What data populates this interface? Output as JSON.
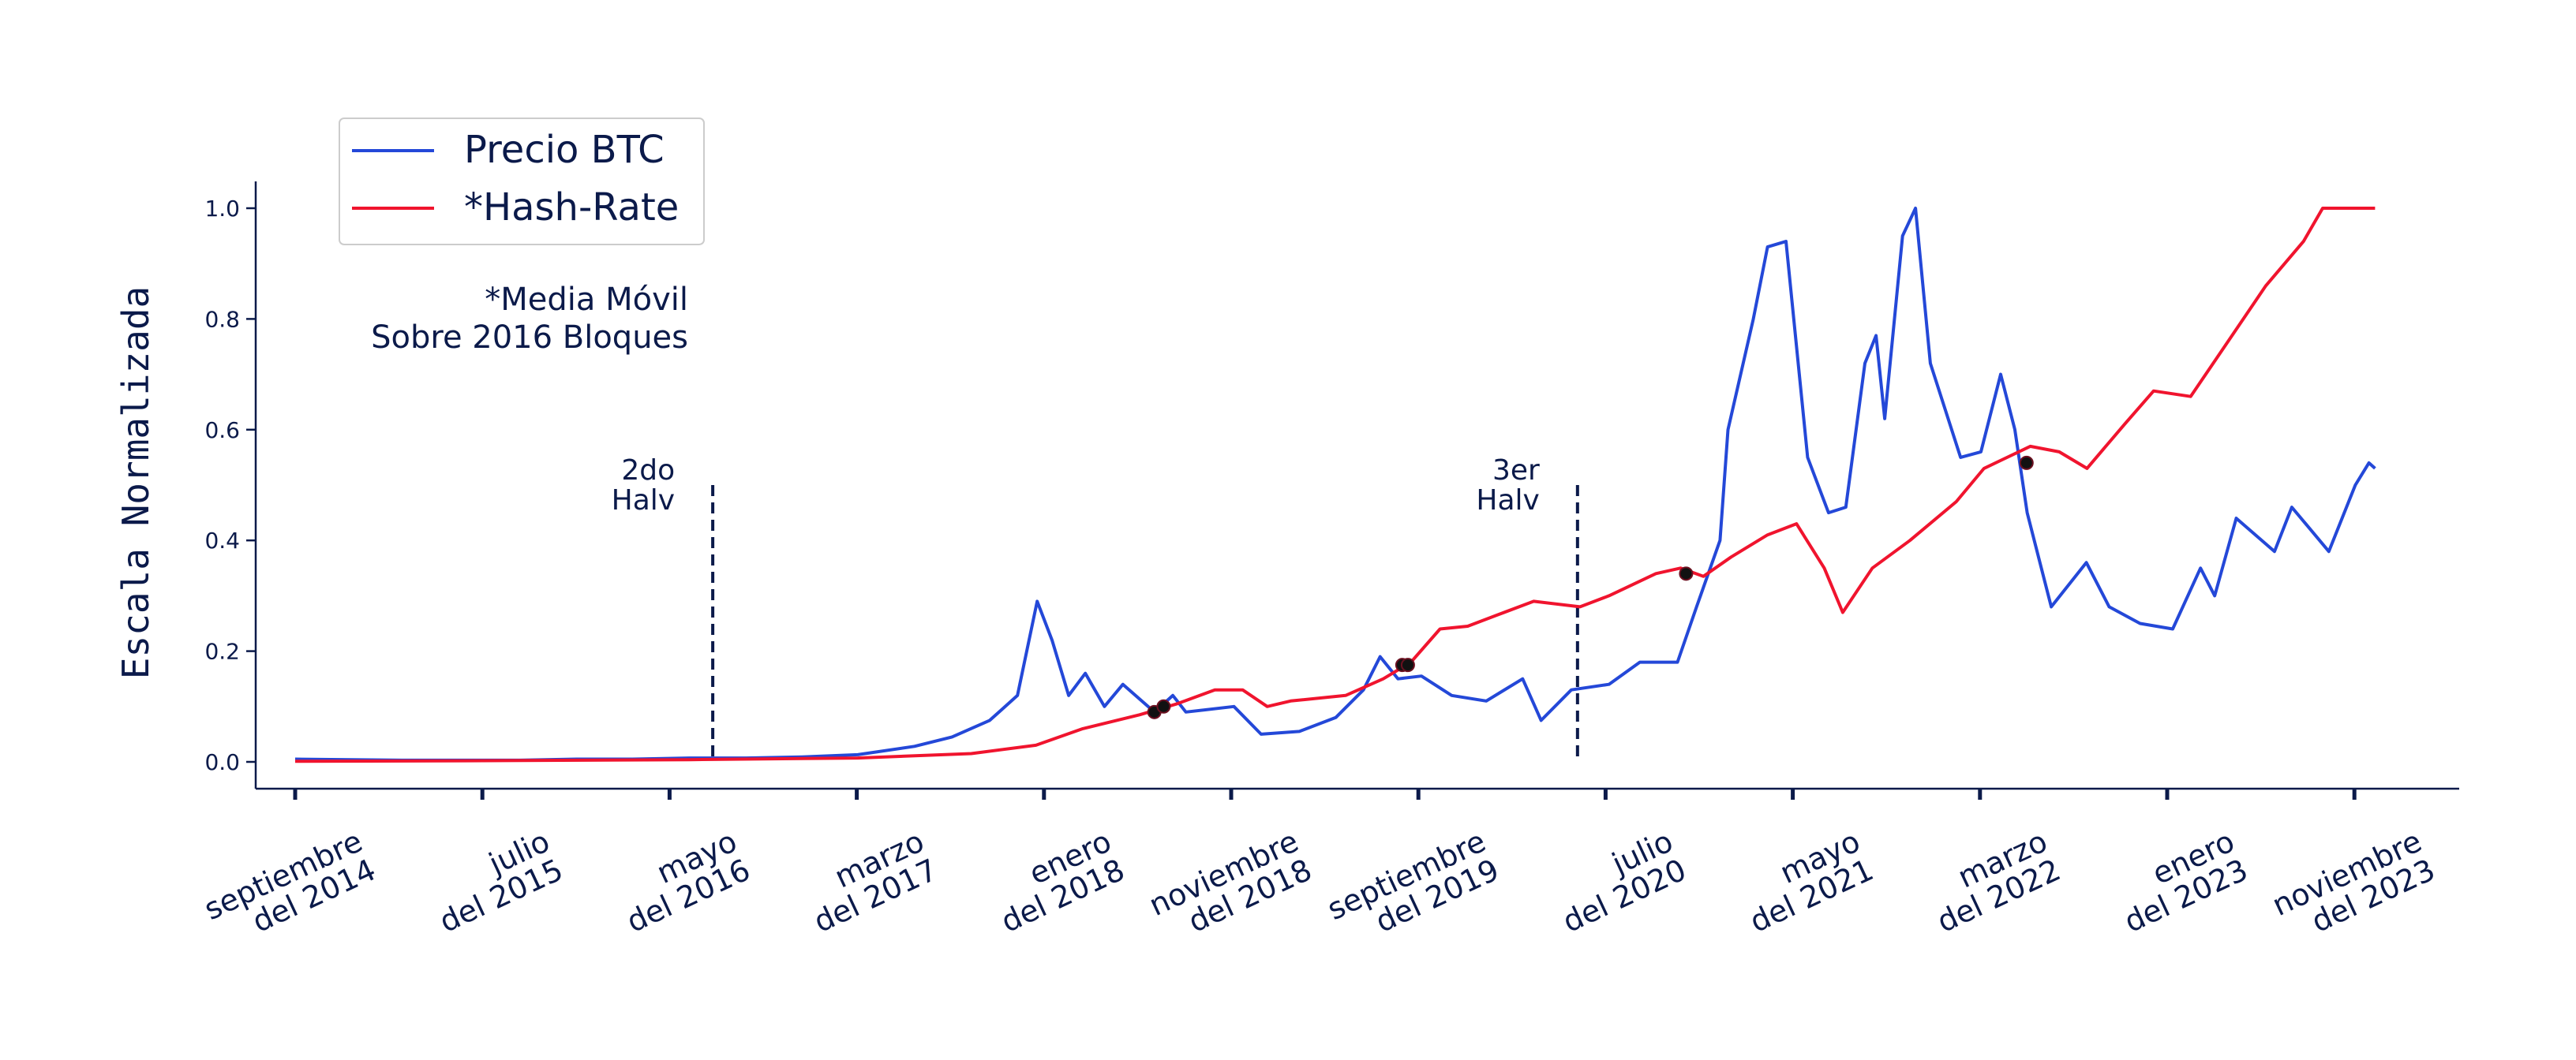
{
  "chart_data": {
    "type": "line",
    "title": "",
    "xlabel": "",
    "ylabel": "Escala Normalizada",
    "ylim": [
      0,
      1.0
    ],
    "y_ticks": [
      "0.0",
      "0.2",
      "0.4",
      "0.6",
      "0.8",
      "1.0"
    ],
    "x_ticks": [
      [
        "septiembre",
        "del 2014"
      ],
      [
        "julio",
        "del 2015"
      ],
      [
        "mayo",
        "del 2016"
      ],
      [
        "marzo",
        "del 2017"
      ],
      [
        "enero",
        "del 2018"
      ],
      [
        "noviembre",
        "del 2018"
      ],
      [
        "septiembre",
        "del 2019"
      ],
      [
        "julio",
        "del 2020"
      ],
      [
        "mayo",
        "del 2021"
      ],
      [
        "marzo",
        "del 2022"
      ],
      [
        "enero",
        "del 2023"
      ],
      [
        "noviembre",
        "del 2023"
      ]
    ],
    "grid": false,
    "legend_position": "top-left",
    "note": [
      "*Media Móvil",
      "Sobre 2016 Bloques"
    ],
    "series": [
      {
        "name": "Precio BTC",
        "color": "#2448d8",
        "points": [
          [
            "2014-09-01",
            0.005
          ],
          [
            "2014-12-01",
            0.004
          ],
          [
            "2015-03-01",
            0.003
          ],
          [
            "2015-06-01",
            0.003
          ],
          [
            "2015-09-01",
            0.003
          ],
          [
            "2015-12-01",
            0.005
          ],
          [
            "2016-03-01",
            0.005
          ],
          [
            "2016-06-01",
            0.007
          ],
          [
            "2016-09-01",
            0.007
          ],
          [
            "2016-12-01",
            0.009
          ],
          [
            "2017-03-01",
            0.013
          ],
          [
            "2017-06-01",
            0.028
          ],
          [
            "2017-08-01",
            0.045
          ],
          [
            "2017-10-01",
            0.075
          ],
          [
            "2017-11-15",
            0.12
          ],
          [
            "2017-12-17",
            0.29
          ],
          [
            "2018-01-10",
            0.22
          ],
          [
            "2018-02-06",
            0.12
          ],
          [
            "2018-03-05",
            0.16
          ],
          [
            "2018-04-05",
            0.1
          ],
          [
            "2018-05-05",
            0.14
          ],
          [
            "2018-06-25",
            0.09
          ],
          [
            "2018-07-25",
            0.12
          ],
          [
            "2018-08-15",
            0.09
          ],
          [
            "2018-11-01",
            0.1
          ],
          [
            "2018-12-15",
            0.05
          ],
          [
            "2019-02-15",
            0.055
          ],
          [
            "2019-04-15",
            0.08
          ],
          [
            "2019-05-30",
            0.13
          ],
          [
            "2019-06-26",
            0.19
          ],
          [
            "2019-07-25",
            0.15
          ],
          [
            "2019-09-01",
            0.155
          ],
          [
            "2019-10-20",
            0.12
          ],
          [
            "2019-12-15",
            0.11
          ],
          [
            "2020-02-12",
            0.15
          ],
          [
            "2020-03-13",
            0.075
          ],
          [
            "2020-05-01",
            0.13
          ],
          [
            "2020-07-01",
            0.14
          ],
          [
            "2020-08-20",
            0.18
          ],
          [
            "2020-10-20",
            0.18
          ],
          [
            "2020-11-20",
            0.28
          ],
          [
            "2020-12-28",
            0.4
          ],
          [
            "2021-01-10",
            0.6
          ],
          [
            "2021-02-20",
            0.8
          ],
          [
            "2021-03-15",
            0.93
          ],
          [
            "2021-04-14",
            0.94
          ],
          [
            "2021-05-19",
            0.55
          ],
          [
            "2021-06-22",
            0.45
          ],
          [
            "2021-07-20",
            0.46
          ],
          [
            "2021-08-20",
            0.72
          ],
          [
            "2021-09-07",
            0.77
          ],
          [
            "2021-09-21",
            0.62
          ],
          [
            "2021-10-20",
            0.95
          ],
          [
            "2021-11-10",
            1.0
          ],
          [
            "2021-12-04",
            0.72
          ],
          [
            "2022-01-22",
            0.55
          ],
          [
            "2022-02-24",
            0.56
          ],
          [
            "2022-03-28",
            0.7
          ],
          [
            "2022-04-20",
            0.6
          ],
          [
            "2022-05-10",
            0.45
          ],
          [
            "2022-06-18",
            0.28
          ],
          [
            "2022-08-14",
            0.36
          ],
          [
            "2022-09-20",
            0.28
          ],
          [
            "2022-11-09",
            0.25
          ],
          [
            "2023-01-01",
            0.24
          ],
          [
            "2023-02-15",
            0.35
          ],
          [
            "2023-03-10",
            0.3
          ],
          [
            "2023-04-14",
            0.44
          ],
          [
            "2023-06-15",
            0.38
          ],
          [
            "2023-07-13",
            0.46
          ],
          [
            "2023-09-11",
            0.38
          ],
          [
            "2023-10-24",
            0.5
          ],
          [
            "2023-11-15",
            0.54
          ],
          [
            "2023-11-25",
            0.53
          ]
        ]
      },
      {
        "name": "*Hash-Rate",
        "color": "#f0142e",
        "points": [
          [
            "2014-09-01",
            0.001
          ],
          [
            "2015-06-01",
            0.002
          ],
          [
            "2016-06-01",
            0.004
          ],
          [
            "2017-03-01",
            0.007
          ],
          [
            "2017-09-01",
            0.015
          ],
          [
            "2017-12-15",
            0.03
          ],
          [
            "2018-03-01",
            0.06
          ],
          [
            "2018-06-01",
            0.085
          ],
          [
            "2018-08-01",
            0.105
          ],
          [
            "2018-10-01",
            0.13
          ],
          [
            "2018-11-15",
            0.13
          ],
          [
            "2018-12-25",
            0.1
          ],
          [
            "2019-02-01",
            0.11
          ],
          [
            "2019-05-01",
            0.12
          ],
          [
            "2019-07-01",
            0.15
          ],
          [
            "2019-08-15",
            0.18
          ],
          [
            "2019-10-01",
            0.24
          ],
          [
            "2019-11-15",
            0.245
          ],
          [
            "2020-01-01",
            0.265
          ],
          [
            "2020-03-01",
            0.29
          ],
          [
            "2020-05-15",
            0.28
          ],
          [
            "2020-07-01",
            0.3
          ],
          [
            "2020-09-15",
            0.34
          ],
          [
            "2020-10-25",
            0.35
          ],
          [
            "2020-12-01",
            0.335
          ],
          [
            "2021-01-15",
            0.37
          ],
          [
            "2021-03-15",
            0.41
          ],
          [
            "2021-05-01",
            0.43
          ],
          [
            "2021-06-15",
            0.35
          ],
          [
            "2021-07-15",
            0.27
          ],
          [
            "2021-09-01",
            0.35
          ],
          [
            "2021-11-01",
            0.4
          ],
          [
            "2022-01-15",
            0.47
          ],
          [
            "2022-03-01",
            0.53
          ],
          [
            "2022-05-15",
            0.57
          ],
          [
            "2022-07-01",
            0.56
          ],
          [
            "2022-08-15",
            0.53
          ],
          [
            "2022-10-15",
            0.61
          ],
          [
            "2022-12-01",
            0.67
          ],
          [
            "2023-01-30",
            0.66
          ],
          [
            "2023-04-01",
            0.76
          ],
          [
            "2023-06-01",
            0.86
          ],
          [
            "2023-08-01",
            0.94
          ],
          [
            "2023-09-01",
            1.0
          ],
          [
            "2023-11-25",
            1.0
          ]
        ]
      }
    ],
    "halvings": [
      {
        "date": "2016-07-09",
        "label": [
          "2do",
          "Halv"
        ],
        "ymax": 0.5
      },
      {
        "date": "2020-05-11",
        "label": [
          "3er",
          "Halv"
        ],
        "ymax": 0.5
      }
    ],
    "crossings": [
      {
        "date": "2018-06-25",
        "y": 0.09
      },
      {
        "date": "2018-07-10",
        "y": 0.1
      },
      {
        "date": "2019-08-01",
        "y": 0.175
      },
      {
        "date": "2019-08-10",
        "y": 0.175
      },
      {
        "date": "2020-11-03",
        "y": 0.34
      },
      {
        "date": "2022-05-09",
        "y": 0.54
      }
    ]
  }
}
